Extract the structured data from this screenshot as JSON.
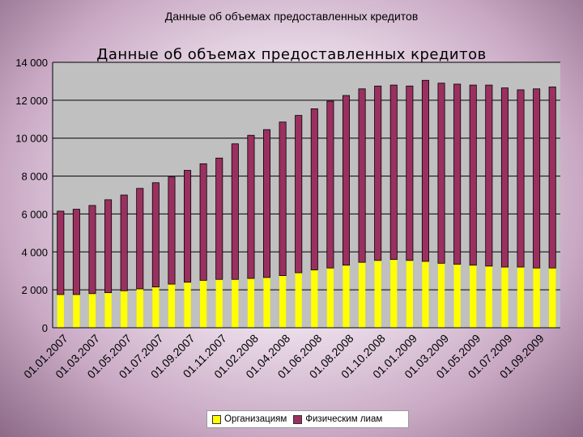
{
  "slide": {
    "title": "Данные об объемах предоставленных кредитов"
  },
  "chart_data": {
    "type": "bar",
    "stacked": true,
    "title": "Данные об объемах предоставленных кредитов",
    "xlabel": "",
    "ylabel": "",
    "ylim": [
      0,
      14000
    ],
    "y_ticks": [
      0,
      2000,
      4000,
      6000,
      8000,
      10000,
      12000,
      14000
    ],
    "y_tick_labels": [
      "0",
      "2 000",
      "4 000",
      "6 000",
      "8 000",
      "10 000",
      "12 000",
      "14 000"
    ],
    "grid": true,
    "legend_position": "bottom",
    "x_tick_labels": [
      "01.01.2007",
      "01.03.2007",
      "01.05.2007",
      "01.07.2007",
      "01.09.2007",
      "01.11.2007",
      "01.02.2008",
      "01.04.2008",
      "01.06.2008",
      "01.08.2008",
      "01.10.2008",
      "01.01.2009",
      "01.03.2009",
      "01.05.2009",
      "01.07.2009",
      "01.09.2009"
    ],
    "x_tick_every": 2,
    "series": [
      {
        "name": "Организациям",
        "color": "#ffff00",
        "values": [
          1750,
          1750,
          1800,
          1850,
          1950,
          2050,
          2150,
          2300,
          2400,
          2500,
          2550,
          2550,
          2600,
          2650,
          2750,
          2900,
          3050,
          3150,
          3300,
          3450,
          3550,
          3600,
          3550,
          3500,
          3400,
          3350,
          3300,
          3250,
          3200,
          3200,
          3150,
          3150
        ]
      },
      {
        "name": "Физическим лиам",
        "color": "#9b3060",
        "values": [
          4400,
          4500,
          4650,
          4900,
          5050,
          5300,
          5500,
          5650,
          5900,
          6150,
          6400,
          7150,
          7550,
          7800,
          8100,
          8300,
          8500,
          8800,
          8950,
          9150,
          9200,
          9200,
          9200,
          9550,
          9500,
          9500,
          9500,
          9550,
          9450,
          9350,
          9450,
          9550
        ]
      }
    ]
  }
}
